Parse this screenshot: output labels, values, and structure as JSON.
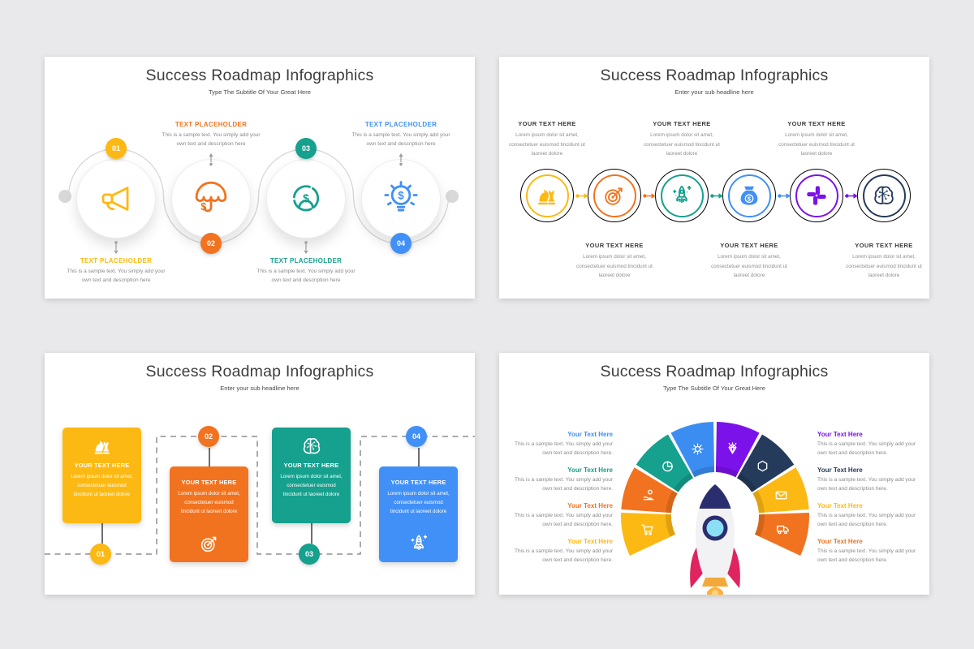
{
  "background": "#E9E9EB",
  "palette": {
    "yellow": "#FDB913",
    "orange": "#F1731F",
    "teal": "#16A08E",
    "blue": "#4190F7",
    "purple": "#7B12EA",
    "navy": "#243B5B",
    "rocket_pink": "#E02460",
    "rocket_window_blue": "#8ADFF5",
    "rocket_flame": "#FBB040",
    "heading_text": "#3B3B3B",
    "body_text": "#8A8A8A",
    "connector_gray": "#D9D9D9"
  },
  "slides": [
    {
      "name": "wave-timeline",
      "title": "Success Roadmap Infographics",
      "subtitle": "Type The Subtitle Of Your Great Here",
      "items": [
        {
          "num": "01",
          "heading": "TEXT PLACEHOLDER",
          "body": "This is a sample text. You simply add your own text and description here",
          "color": "#FDB913",
          "icon": "megaphone",
          "text_position": "below"
        },
        {
          "num": "02",
          "heading": "TEXT PLACEHOLDER",
          "body": "This is a sample text. You simply add your own text and description here",
          "color": "#F1731F",
          "icon": "umbrella-dollar",
          "text_position": "above"
        },
        {
          "num": "03",
          "heading": "TEXT PLACEHOLDER",
          "body": "This is a sample text. You simply add your own text and description here",
          "color": "#16A08E",
          "icon": "chart-dollar",
          "text_position": "below"
        },
        {
          "num": "04",
          "heading": "TEXT PLACEHOLDER",
          "body": "This is a sample text. You simply add your own text and description here",
          "color": "#4190F7",
          "icon": "bulb-dollar",
          "text_position": "above"
        }
      ]
    },
    {
      "name": "six-step-rings",
      "title": "Success Roadmap Infographics",
      "subtitle": "Enter your sub headline here",
      "items": [
        {
          "heading": "YOUR TEXT HERE",
          "body": "Lorem ipsum dolor sit amet, consectetuer euismod tincidunt ut laoreet dolore",
          "color": "#FDB913",
          "icon": "chess",
          "text_position": "above"
        },
        {
          "heading": "YOUR TEXT HERE",
          "body": "Lorem ipsum dolor sit amet, consectetuer euismod tincidunt ut laoreet dolore",
          "color": "#F1731F",
          "icon": "target",
          "text_position": "below"
        },
        {
          "heading": "YOUR TEXT HERE",
          "body": "Lorem ipsum dolor sit amet, consectetuer euismod tincidunt ut laoreet dolore",
          "color": "#16A08E",
          "icon": "rocket",
          "text_position": "above"
        },
        {
          "heading": "YOUR TEXT HERE",
          "body": "Lorem ipsum dolor sit amet, consectetuer euismod tincidunt ut laoreet dolore",
          "color": "#4190F7",
          "icon": "money-bag",
          "text_position": "below"
        },
        {
          "heading": "YOUR TEXT HERE",
          "body": "Lorem ipsum dolor sit amet, consectetuer euismod tincidunt ut laoreet dolore",
          "color": "#7B12EA",
          "icon": "hands",
          "text_position": "above"
        },
        {
          "heading": "YOUR TEXT HERE",
          "body": "Lorem ipsum dolor sit amet, consectetuer euismod tincidunt ut laoreet dolore",
          "color": "#243B5B",
          "icon": "brain",
          "text_position": "below"
        }
      ]
    },
    {
      "name": "snake-cards",
      "title": "Success Roadmap Infographics",
      "subtitle": "Enter your sub headline here",
      "items": [
        {
          "num": "01",
          "heading": "YOUR TEXT HERE",
          "body": "Lorem ipsum dolor sit amet, consectetuer euismod tincidunt ut laoreet dolore",
          "color": "#FDB913",
          "icon": "chess",
          "card_position": "high",
          "badge_position": "bottom"
        },
        {
          "num": "02",
          "heading": "YOUR TEXT HERE",
          "body": "Lorem ipsum dolor sit amet, consectetuer euismod tincidunt ut laoreet dolore",
          "color": "#F1731F",
          "icon": "target",
          "card_position": "low",
          "badge_position": "top"
        },
        {
          "num": "03",
          "heading": "YOUR TEXT HERE",
          "body": "Lorem ipsum dolor sit amet, consectetuer euismod tincidunt ut laoreet dolore",
          "color": "#16A08E",
          "icon": "brain",
          "card_position": "high",
          "badge_position": "bottom"
        },
        {
          "num": "04",
          "heading": "YOUR TEXT HERE",
          "body": "Lorem ipsum dolor sit amet, consectetuer euismod tincidunt ut laoreet dolore",
          "color": "#4190F7",
          "icon": "rocket",
          "card_position": "low",
          "badge_position": "top"
        }
      ]
    },
    {
      "name": "arch-rocket",
      "title": "Success Roadmap Infographics",
      "subtitle": "Type The Subtitle Of Your Great Here",
      "left_items": [
        {
          "heading": "Your Text Here",
          "body": "This is a sample text. You simply add your own text and description here.",
          "color": "#4190F7"
        },
        {
          "heading": "Your Text Here",
          "body": "This is a sample text. You simply add your own text and description here.",
          "color": "#16A08E"
        },
        {
          "heading": "Your Text Here",
          "body": "This is a sample text. You simply add your own text and description here.",
          "color": "#F1731F"
        },
        {
          "heading": "Your Text Here",
          "body": "This is a sample text. You simply add your own text and description here.",
          "color": "#FDB913"
        }
      ],
      "right_items": [
        {
          "heading": "Your Text Here",
          "body": "This is a sample text. You simply add your own text and description here.",
          "color": "#7B12EA"
        },
        {
          "heading": "Your Text Here",
          "body": "This is a sample text. You simply add your own text and description here.",
          "color": "#243B5B"
        },
        {
          "heading": "Your Text Here",
          "body": "This is a sample text. You simply add your own text and description here.",
          "color": "#FDB913"
        },
        {
          "heading": "Your Text Here",
          "body": "This is a sample text. You simply add your own text and description here.",
          "color": "#F1731F"
        }
      ],
      "segments": [
        {
          "color": "#FDB913",
          "icon": "cart"
        },
        {
          "color": "#F1731F",
          "icon": "hand-coin"
        },
        {
          "color": "#16A08E",
          "icon": "pie-chart"
        },
        {
          "color": "#3B8DF2",
          "icon": "gear"
        },
        {
          "color": "#7B12EA",
          "icon": "diamond"
        },
        {
          "color": "#243B5B",
          "icon": "hexagon"
        },
        {
          "color": "#FDB913",
          "icon": "envelope"
        },
        {
          "color": "#F1731F",
          "icon": "truck"
        }
      ]
    }
  ]
}
